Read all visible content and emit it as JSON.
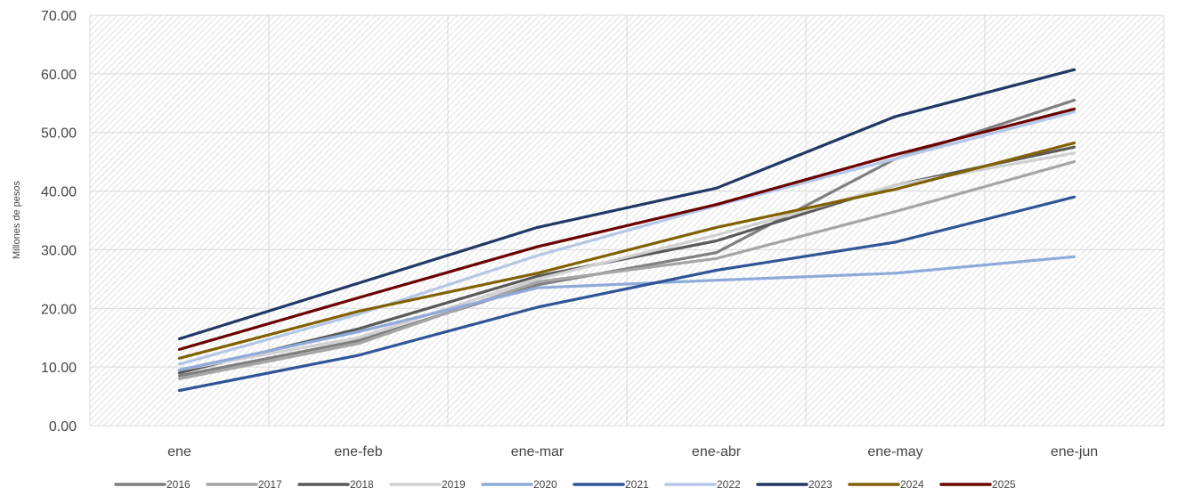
{
  "chart_data": {
    "type": "line",
    "title": "",
    "xlabel": "",
    "ylabel": "Millones de pesos",
    "ylim": [
      0,
      70
    ],
    "yticks": [
      "0.00",
      "10.00",
      "20.00",
      "30.00",
      "40.00",
      "50.00",
      "60.00",
      "70.00"
    ],
    "categories": [
      "ene",
      "ene-feb",
      "ene-mar",
      "ene-abr",
      "ene-may",
      "ene-jun"
    ],
    "grid": true,
    "legend_position": "bottom",
    "series": [
      {
        "name": "2016",
        "color": "#7f7f7f",
        "values": [
          8.5,
          14.5,
          24.0,
          29.5,
          45.5,
          55.5
        ]
      },
      {
        "name": "2017",
        "color": "#a5a5a5",
        "values": [
          8.0,
          14.0,
          24.5,
          28.5,
          36.5,
          45.0
        ]
      },
      {
        "name": "2018",
        "color": "#595959",
        "values": [
          9.0,
          16.5,
          25.5,
          31.5,
          41.0,
          47.5
        ]
      },
      {
        "name": "2019",
        "color": "#d0d0d0",
        "values": [
          9.5,
          15.0,
          25.0,
          32.5,
          41.0,
          46.5
        ]
      },
      {
        "name": "2020",
        "color": "#8eaadb",
        "values": [
          9.5,
          16.0,
          23.5,
          24.8,
          26.0,
          28.8
        ]
      },
      {
        "name": "2021",
        "color": "#2f5597",
        "values": [
          6.0,
          12.0,
          20.2,
          26.5,
          31.3,
          39.0
        ]
      },
      {
        "name": "2022",
        "color": "#b4c7e7",
        "values": [
          10.5,
          19.0,
          29.0,
          37.5,
          45.5,
          53.5
        ]
      },
      {
        "name": "2023",
        "color": "#203864",
        "values": [
          14.8,
          24.3,
          33.8,
          40.5,
          52.7,
          60.7
        ]
      },
      {
        "name": "2024",
        "color": "#806000",
        "values": [
          11.5,
          19.5,
          26.0,
          33.8,
          40.3,
          48.2
        ]
      },
      {
        "name": "2025",
        "color": "#6b0000",
        "values": [
          13.0,
          21.8,
          30.5,
          37.7,
          46.2,
          54.0
        ]
      }
    ]
  }
}
